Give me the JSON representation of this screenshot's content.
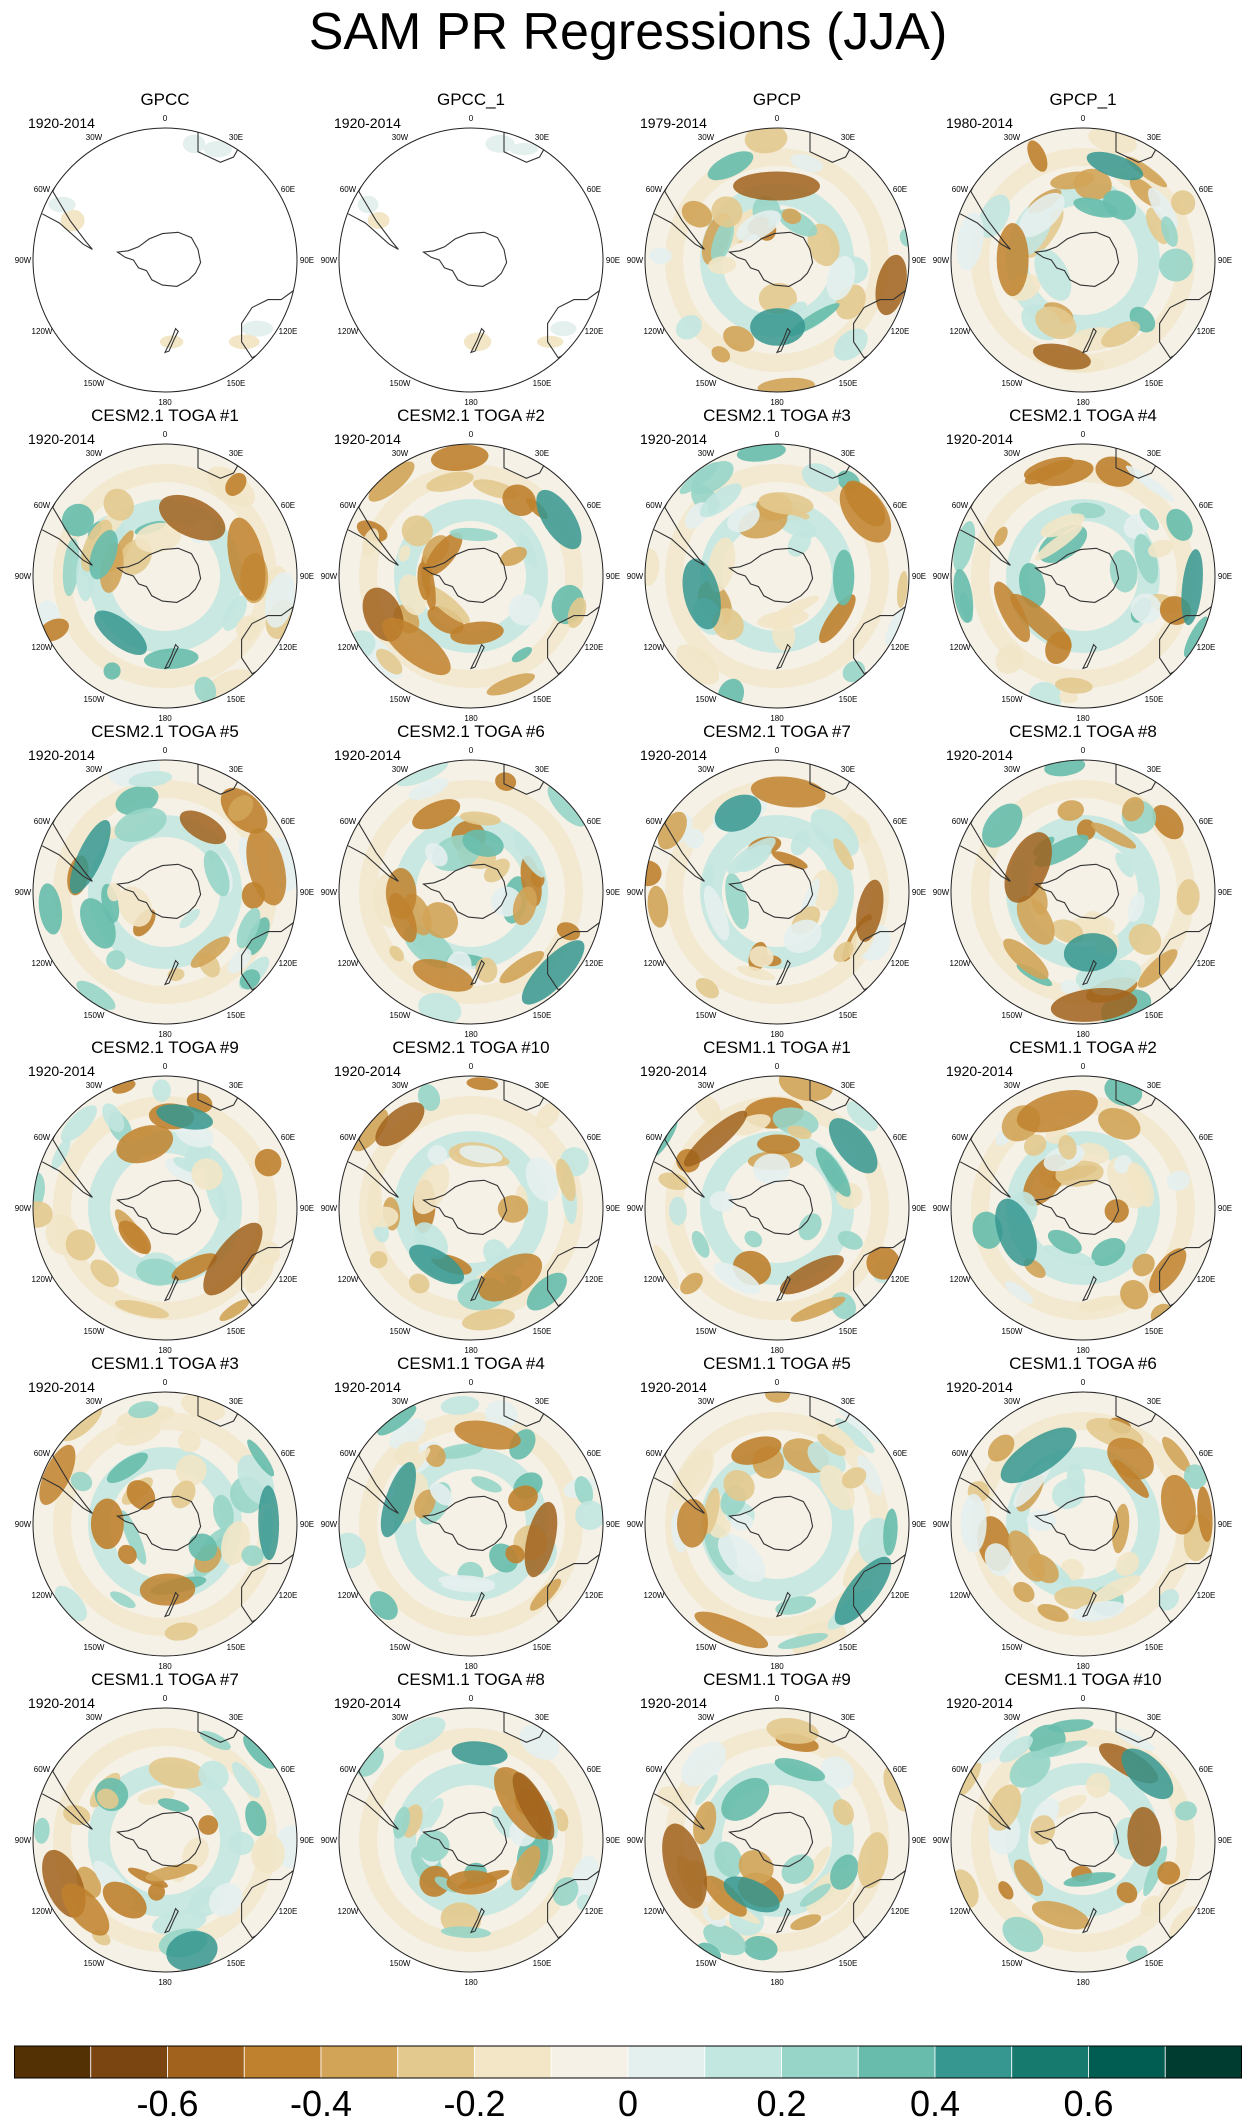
{
  "title": "SAM PR Regressions (JJA)",
  "panels": [
    {
      "name": "GPCC",
      "period": "1920-2014",
      "variant": "gpcc"
    },
    {
      "name": "GPCC_1",
      "period": "1920-2014",
      "variant": "gpcc"
    },
    {
      "name": "GPCP",
      "period": "1979-2014",
      "variant": "full"
    },
    {
      "name": "GPCP_1",
      "period": "1980-2014",
      "variant": "full"
    },
    {
      "name": "CESM2.1 TOGA #1",
      "period": "1920-2014",
      "variant": "full"
    },
    {
      "name": "CESM2.1 TOGA #2",
      "period": "1920-2014",
      "variant": "full"
    },
    {
      "name": "CESM2.1 TOGA #3",
      "period": "1920-2014",
      "variant": "full"
    },
    {
      "name": "CESM2.1 TOGA #4",
      "period": "1920-2014",
      "variant": "full"
    },
    {
      "name": "CESM2.1 TOGA #5",
      "period": "1920-2014",
      "variant": "full"
    },
    {
      "name": "CESM2.1 TOGA #6",
      "period": "1920-2014",
      "variant": "full"
    },
    {
      "name": "CESM2.1 TOGA #7",
      "period": "1920-2014",
      "variant": "full"
    },
    {
      "name": "CESM2.1 TOGA #8",
      "period": "1920-2014",
      "variant": "full"
    },
    {
      "name": "CESM2.1 TOGA #9",
      "period": "1920-2014",
      "variant": "full"
    },
    {
      "name": "CESM2.1 TOGA #10",
      "period": "1920-2014",
      "variant": "full"
    },
    {
      "name": "CESM1.1 TOGA #1",
      "period": "1920-2014",
      "variant": "full"
    },
    {
      "name": "CESM1.1 TOGA #2",
      "period": "1920-2014",
      "variant": "full"
    },
    {
      "name": "CESM1.1 TOGA #3",
      "period": "1920-2014",
      "variant": "full"
    },
    {
      "name": "CESM1.1 TOGA #4",
      "period": "1920-2014",
      "variant": "full"
    },
    {
      "name": "CESM1.1 TOGA #5",
      "period": "1920-2014",
      "variant": "full"
    },
    {
      "name": "CESM1.1 TOGA #6",
      "period": "1920-2014",
      "variant": "full"
    },
    {
      "name": "CESM1.1 TOGA #7",
      "period": "1920-2014",
      "variant": "full"
    },
    {
      "name": "CESM1.1 TOGA #8",
      "period": "1920-2014",
      "variant": "full"
    },
    {
      "name": "CESM1.1 TOGA #9",
      "period": "1920-2014",
      "variant": "full"
    },
    {
      "name": "CESM1.1 TOGA #10",
      "period": "1920-2014",
      "variant": "full"
    }
  ],
  "longitude_labels": [
    "0",
    "30E",
    "60E",
    "90E",
    "120E",
    "150E",
    "180",
    "150W",
    "120W",
    "90W",
    "60W",
    "30W"
  ],
  "colorbar": {
    "colors": [
      "#543005",
      "#7a4510",
      "#a0621c",
      "#bf812d",
      "#d2a458",
      "#e3c98e",
      "#f2e6c6",
      "#f5f1e6",
      "#e4f0ee",
      "#c2e6e0",
      "#97d5c8",
      "#67bcac",
      "#35978f",
      "#167a6e",
      "#015d51",
      "#003c30"
    ],
    "ticks": [
      {
        "label": "-0.6",
        "value": -0.6
      },
      {
        "label": "-0.4",
        "value": -0.4
      },
      {
        "label": "-0.2",
        "value": -0.2
      },
      {
        "label": "0",
        "value": 0
      },
      {
        "label": "0.2",
        "value": 0.2
      },
      {
        "label": "0.4",
        "value": 0.4
      },
      {
        "label": "0.6",
        "value": 0.6
      }
    ],
    "range": [
      -0.8,
      0.8
    ]
  }
}
